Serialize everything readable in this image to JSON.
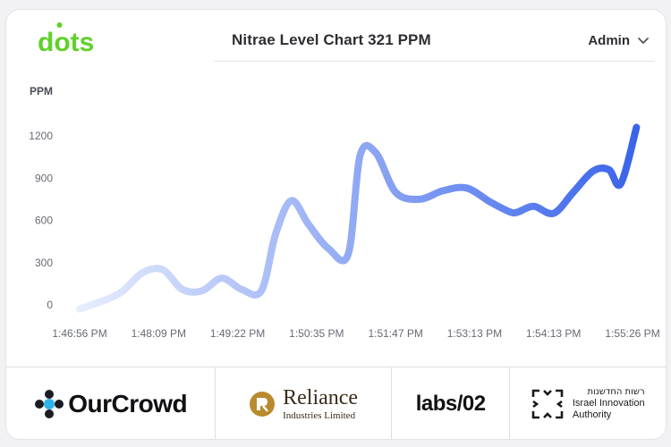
{
  "brand": {
    "logo_text": "dots",
    "color": "#5fd12a"
  },
  "header": {
    "title": "Nitrae Level Chart 321 PPM",
    "user": "Admin"
  },
  "chart_data": {
    "type": "line",
    "title": "Nitrae Level Chart 321 PPM",
    "ylabel": "PPM",
    "xlabel": "",
    "ylim": [
      0,
      1300
    ],
    "yticks": [
      0,
      300,
      600,
      900,
      1200
    ],
    "xticks": [
      "1:46:56 PM",
      "1:48:09 PM",
      "1:49:22 PM",
      "1:50:35 PM",
      "1:51:47 PM",
      "1:53:13 PM",
      "1:54:13 PM",
      "1:55:26 PM"
    ],
    "grid": false,
    "gradient": [
      "#e6edfd",
      "#3a64ea"
    ],
    "x": [
      0,
      0.35,
      0.55,
      0.8,
      1.05,
      1.3,
      1.55,
      1.8,
      2.05,
      2.3,
      2.48,
      2.68,
      2.9,
      3.15,
      3.4,
      3.55,
      3.75,
      4.0,
      4.3,
      4.6,
      4.9,
      5.2,
      5.45,
      5.55,
      5.75,
      6.0,
      6.25,
      6.5,
      6.7,
      6.85,
      7.05
    ],
    "values": [
      -30,
      40,
      100,
      230,
      250,
      110,
      100,
      190,
      110,
      100,
      500,
      740,
      570,
      400,
      360,
      1060,
      1080,
      800,
      750,
      810,
      830,
      730,
      660,
      660,
      700,
      650,
      800,
      950,
      960,
      860,
      1260
    ]
  },
  "partners": {
    "ourcrowd": "OurCrowd",
    "reliance_main": "Reliance",
    "reliance_sub": "Industries Limited",
    "labs": "labs/02",
    "iia_hebrew": "רשות החדשנות",
    "iia_line1": "Israel Innovation",
    "iia_line2": "Authority"
  }
}
